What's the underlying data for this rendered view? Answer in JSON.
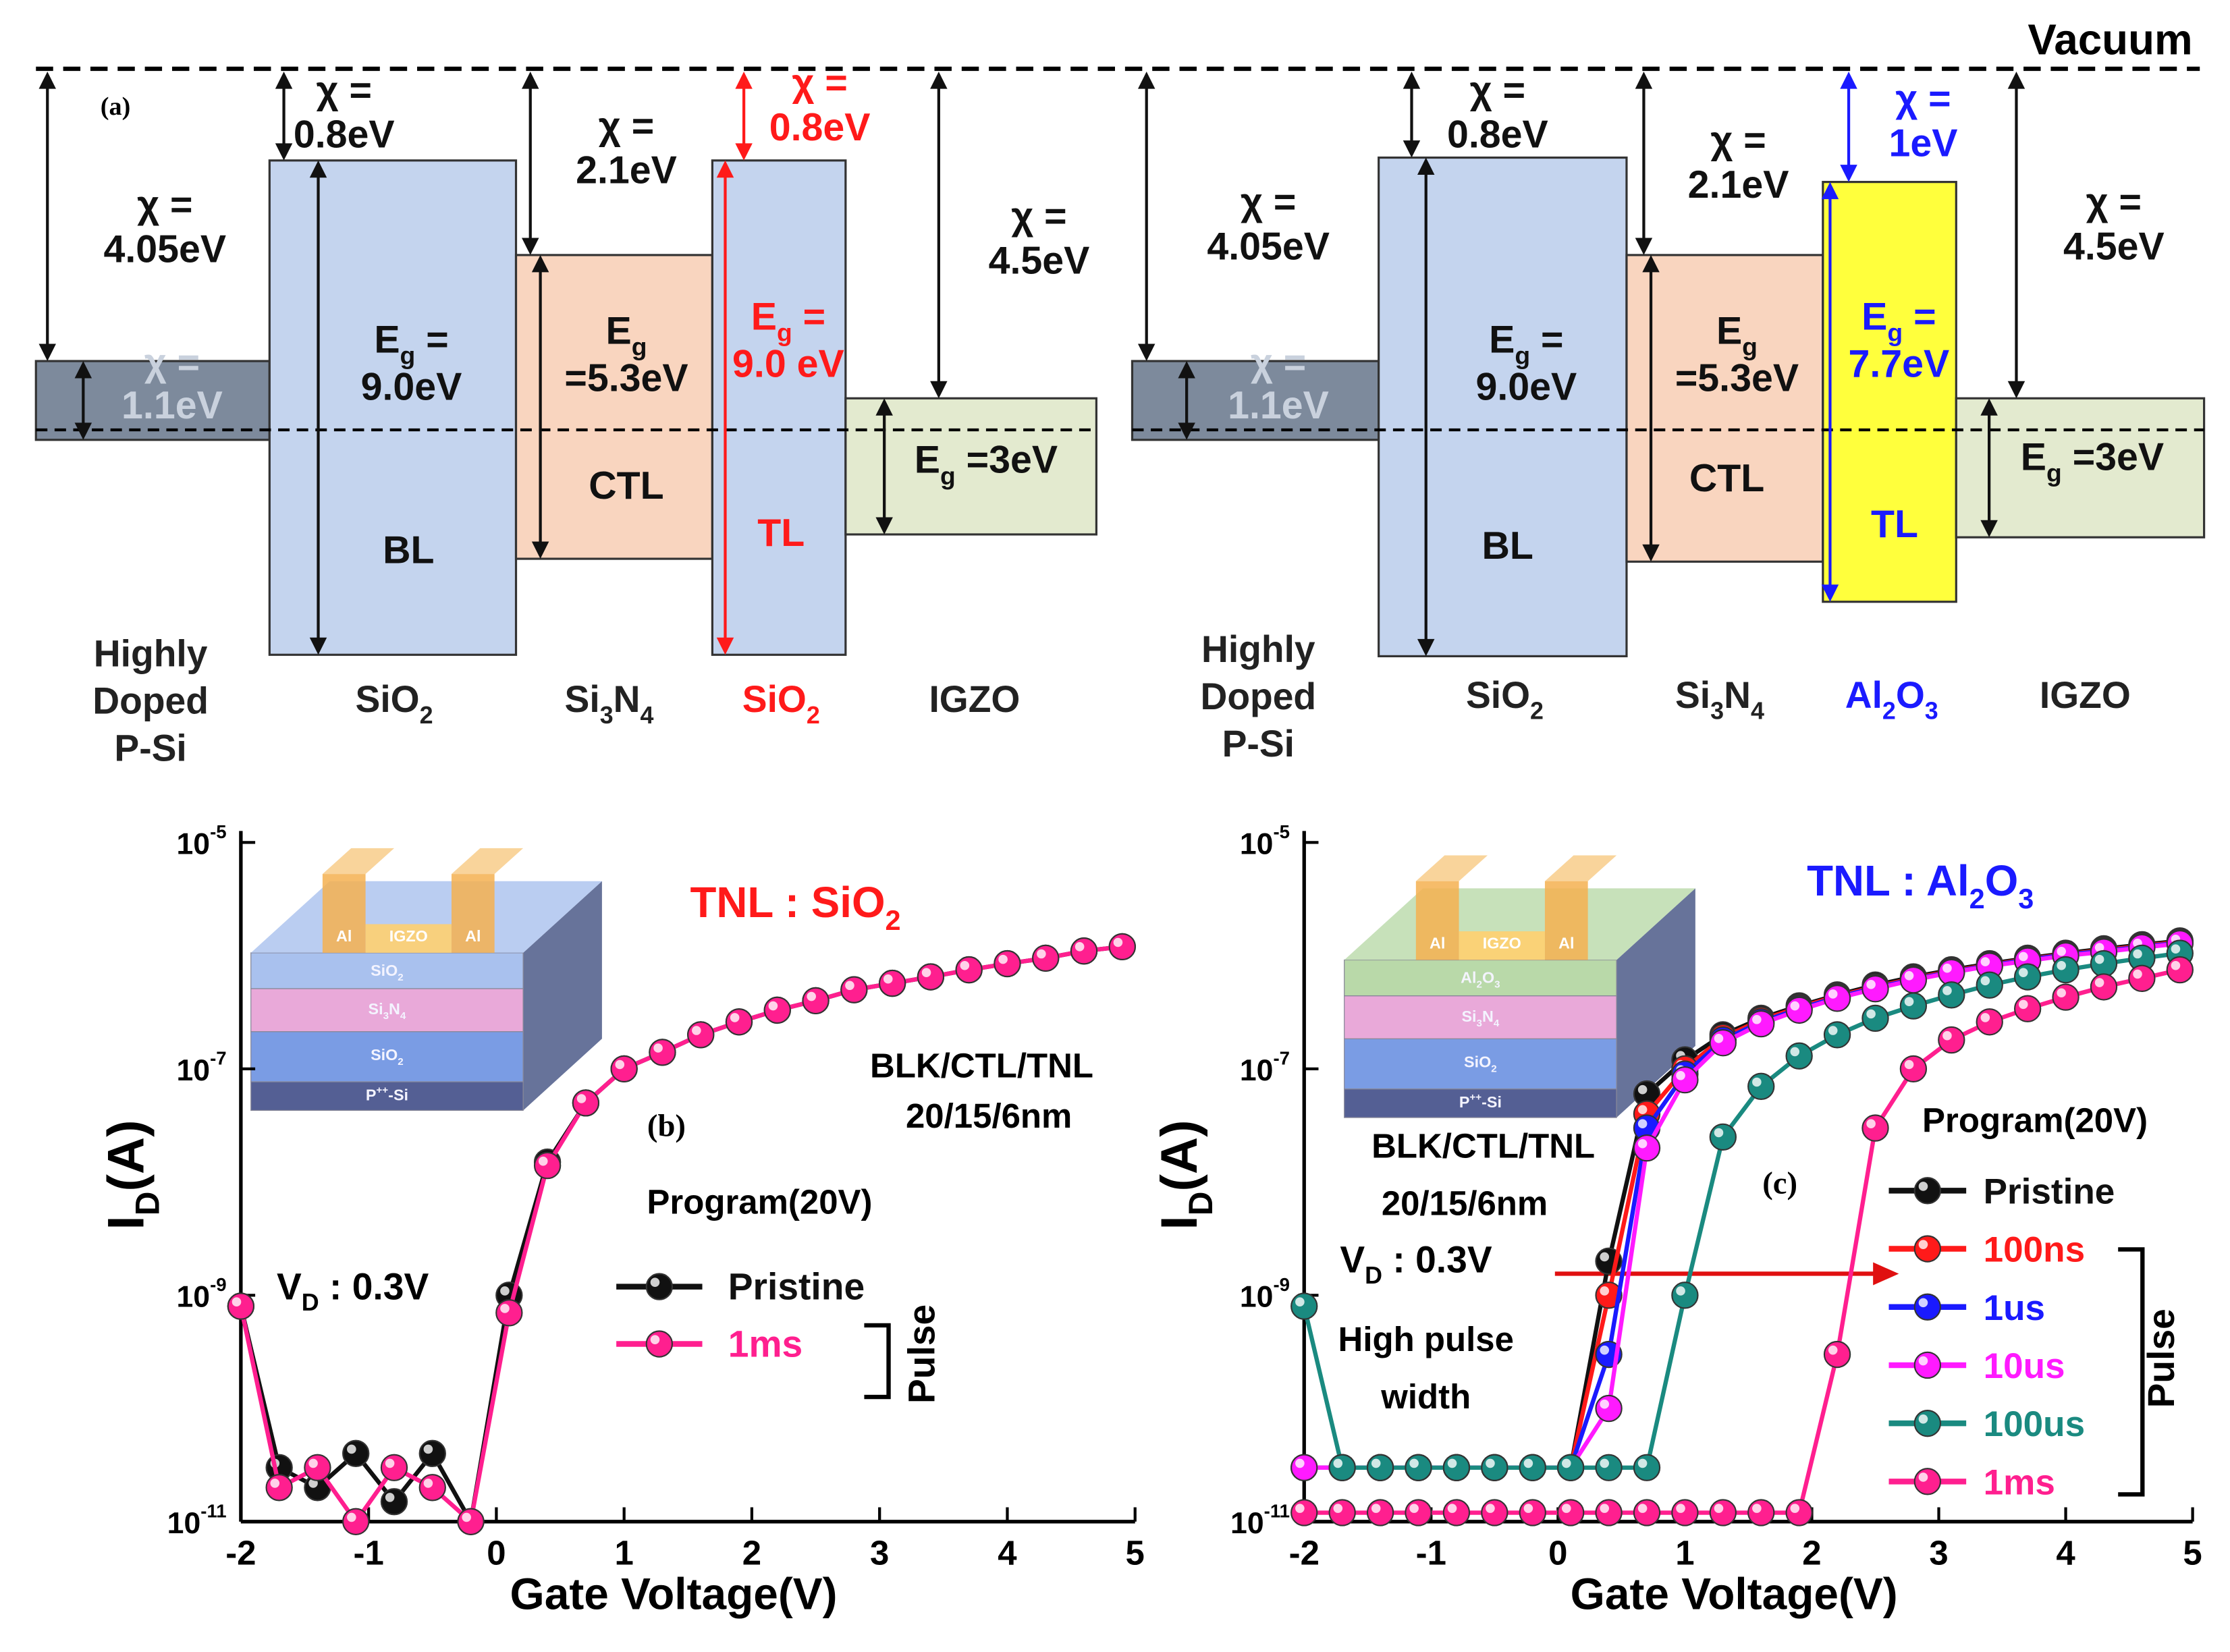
{
  "band_diagram": {
    "vacuum": "Vacuum",
    "label": "(a)",
    "panels": [
      {
        "layers": [
          {
            "color": "#7d8a9c",
            "chi": [
              [
                "χ ="
              ],
              [
                "4.05eV"
              ]
            ],
            "inner": [
              [
                "χ ="
              ],
              [
                "1.1eV"
              ]
            ],
            "name": [
              [
                "Highly"
              ],
              [
                "Doped"
              ],
              [
                "P-Si"
              ]
            ]
          },
          {
            "color": "#c4d4ee",
            "chi": [
              [
                "χ ="
              ],
              [
                "0.8eV"
              ]
            ],
            "eg": [
              [
                "E",
                {
                  "sub": "g"
                },
                " ="
              ],
              [
                "9.0eV"
              ]
            ],
            "region": "BL",
            "name": [
              [
                "SiO",
                {
                  "sub": "2"
                }
              ]
            ]
          },
          {
            "color": "#f9d5bf",
            "chi": [
              [
                "χ ="
              ],
              [
                "2.1eV"
              ]
            ],
            "eg": [
              [
                "E",
                {
                  "sub": "g"
                }
              ],
              [
                "=5.3eV"
              ]
            ],
            "region": "CTL",
            "name": [
              [
                "Si",
                {
                  "sub": "3"
                },
                "N",
                {
                  "sub": "4"
                }
              ]
            ]
          },
          {
            "color": "#c4d4ee",
            "text_color": "#ff1a1a",
            "chi": [
              [
                "χ ="
              ],
              [
                "0.8eV"
              ]
            ],
            "eg": [
              [
                "E",
                {
                  "sub": "g"
                },
                " ="
              ],
              [
                "9.0 eV"
              ]
            ],
            "region": "TL",
            "name": [
              [
                "SiO",
                {
                  "sub": "2"
                }
              ]
            ]
          },
          {
            "color": "#e3eacf",
            "chi": [
              [
                "χ ="
              ],
              [
                "4.5eV"
              ]
            ],
            "eg": [
              [
                "E",
                {
                  "sub": "g"
                },
                " =3eV"
              ]
            ],
            "name": [
              [
                "IGZO"
              ]
            ]
          }
        ]
      },
      {
        "layers": [
          {
            "color": "#7d8a9c",
            "chi": [
              [
                "χ ="
              ],
              [
                "4.05eV"
              ]
            ],
            "inner": [
              [
                "χ ="
              ],
              [
                "1.1eV"
              ]
            ],
            "name": [
              [
                "Highly"
              ],
              [
                "Doped"
              ],
              [
                "P-Si"
              ]
            ]
          },
          {
            "color": "#c4d4ee",
            "chi": [
              [
                "χ ="
              ],
              [
                "0.8eV"
              ]
            ],
            "eg": [
              [
                "E",
                {
                  "sub": "g"
                },
                " ="
              ],
              [
                "9.0eV"
              ]
            ],
            "region": "BL",
            "name": [
              [
                "SiO",
                {
                  "sub": "2"
                }
              ]
            ]
          },
          {
            "color": "#f9d5bf",
            "chi": [
              [
                "χ ="
              ],
              [
                "2.1eV"
              ]
            ],
            "eg": [
              [
                "E",
                {
                  "sub": "g"
                }
              ],
              [
                "=5.3eV"
              ]
            ],
            "region": "CTL",
            "name": [
              [
                "Si",
                {
                  "sub": "3"
                },
                "N",
                {
                  "sub": "4"
                }
              ]
            ]
          },
          {
            "color": "#ffff3c",
            "text_color": "#1a1aff",
            "chi": [
              [
                "χ ="
              ],
              [
                "1eV"
              ]
            ],
            "eg": [
              [
                "E",
                {
                  "sub": "g"
                },
                " ="
              ],
              [
                "7.7eV"
              ]
            ],
            "region": "TL",
            "name": [
              [
                "Al",
                {
                  "sub": "2"
                },
                "O",
                {
                  "sub": "3"
                }
              ]
            ]
          },
          {
            "color": "#e3eacf",
            "chi": [
              [
                "χ ="
              ],
              [
                "4.5eV"
              ]
            ],
            "eg": [
              [
                "E",
                {
                  "sub": "g"
                },
                " =3eV"
              ]
            ],
            "name": [
              [
                "IGZO"
              ]
            ]
          }
        ]
      }
    ]
  },
  "chart_data": [
    {
      "type": "line",
      "log_y": true,
      "title": [
        "TNL : SiO",
        {
          "sub": "2"
        }
      ],
      "title_color": "#ff1a1a",
      "x_label": "Gate Voltage(V)",
      "y_label": [
        "I",
        {
          "sub": "D"
        },
        "(A)"
      ],
      "annotations": [
        [
          "BLK/CTL/TNL"
        ],
        [
          "20/15/6nm"
        ],
        [
          "(b)"
        ],
        [
          "Program(20V)"
        ],
        [
          "V",
          {
            "sub": "D"
          },
          " : 0.3V"
        ]
      ],
      "pulse_label": "Pulse",
      "inset": {
        "top_color": "#a9c1ee",
        "labels": [
          [
            "Al"
          ],
          [
            "IGZO"
          ],
          [
            "Al"
          ],
          [
            "SiO",
            {
              "sub": "2"
            }
          ],
          [
            "Si",
            {
              "sub": "3"
            },
            "N",
            {
              "sub": "4"
            }
          ],
          [
            "SiO",
            {
              "sub": "2"
            }
          ],
          [
            "P",
            {
              "sup": "++"
            },
            "-Si"
          ]
        ]
      },
      "xlim": [
        -2,
        5
      ],
      "xticks": [
        -2,
        -1,
        0,
        1,
        2,
        3,
        4,
        5
      ],
      "ylim": [
        1e-11,
        1e-05
      ],
      "yticks": [
        {
          "value": 1e-11,
          "label": "10-11"
        },
        {
          "value": 1e-09,
          "label": "10-9"
        },
        {
          "value": 1e-07,
          "label": "10-7"
        },
        {
          "value": 1e-05,
          "label": "10-5"
        }
      ],
      "x": [
        -2,
        -1.7,
        -1.4,
        -1.1,
        -0.8,
        -0.5,
        -0.2,
        0.1,
        0.4,
        0.7,
        1.0,
        1.3,
        1.6,
        1.9,
        2.2,
        2.5,
        2.8,
        3.1,
        3.4,
        3.7,
        4.0,
        4.3,
        4.6,
        4.9
      ],
      "series": [
        {
          "name": "Pristine",
          "color": "#111111",
          "values": [
            8e-10,
            3e-11,
            2e-11,
            4e-11,
            1.5e-11,
            4e-11,
            1e-11,
            1e-09,
            1.5e-08,
            5e-08,
            1e-07,
            1.4e-07,
            2e-07,
            2.6e-07,
            3.3e-07,
            4e-07,
            5e-07,
            5.7e-07,
            6.5e-07,
            7.5e-07,
            8.5e-07,
            9.5e-07,
            1.1e-06,
            1.2e-06
          ]
        },
        {
          "name": "1ms",
          "color": "#ff1f8f",
          "values": [
            8e-10,
            2e-11,
            3e-11,
            1e-11,
            3e-11,
            2e-11,
            1e-11,
            7e-10,
            1.4e-08,
            5e-08,
            1e-07,
            1.4e-07,
            2e-07,
            2.6e-07,
            3.3e-07,
            4e-07,
            5e-07,
            5.7e-07,
            6.5e-07,
            7.5e-07,
            8.5e-07,
            9.5e-07,
            1.1e-06,
            1.2e-06
          ]
        }
      ]
    },
    {
      "type": "line",
      "log_y": true,
      "title": [
        "TNL : Al",
        {
          "sub": "2"
        },
        "O",
        {
          "sub": "3"
        }
      ],
      "title_color": "#1a1aff",
      "x_label": "Gate Voltage(V)",
      "y_label": [
        "I",
        {
          "sub": "D"
        },
        "(A)"
      ],
      "annotations": [
        [
          "BLK/CTL/TNL"
        ],
        [
          "20/15/6nm"
        ],
        [
          "V",
          {
            "sub": "D"
          },
          " : 0.3V"
        ],
        [
          "High pulse"
        ],
        [
          "width"
        ],
        [
          "(c)"
        ],
        [
          "Program(20V)"
        ]
      ],
      "pulse_label": "Pulse",
      "inset": {
        "top_color": "#b9d9a9",
        "labels": [
          [
            "Al"
          ],
          [
            "IGZO"
          ],
          [
            "Al"
          ],
          [
            "Al",
            {
              "sub": "2"
            },
            "O",
            {
              "sub": "3"
            }
          ],
          [
            "Si",
            {
              "sub": "3"
            },
            "N",
            {
              "sub": "4"
            }
          ],
          [
            "SiO",
            {
              "sub": "2"
            }
          ],
          [
            "P",
            {
              "sup": "++"
            },
            "-Si"
          ]
        ]
      },
      "xlim": [
        -2,
        5
      ],
      "xticks": [
        -2,
        -1,
        0,
        1,
        2,
        3,
        4,
        5
      ],
      "ylim": [
        1e-11,
        1e-05
      ],
      "yticks": [
        {
          "value": 1e-11,
          "label": "10-11"
        },
        {
          "value": 1e-09,
          "label": "10-9"
        },
        {
          "value": 1e-07,
          "label": "10-7"
        },
        {
          "value": 1e-05,
          "label": "10-5"
        }
      ],
      "x": [
        -2,
        -1.7,
        -1.4,
        -1.1,
        -0.8,
        -0.5,
        -0.2,
        0.1,
        0.4,
        0.7,
        1.0,
        1.3,
        1.6,
        1.9,
        2.2,
        2.5,
        2.8,
        3.1,
        3.4,
        3.7,
        4.0,
        4.3,
        4.6,
        4.9
      ],
      "series": [
        {
          "name": "Pristine",
          "color": "#111111",
          "values": [
            3e-11,
            3e-11,
            3e-11,
            3e-11,
            3e-11,
            3e-11,
            3e-11,
            3e-11,
            2e-09,
            6e-08,
            1.2e-07,
            2e-07,
            2.8e-07,
            3.6e-07,
            4.5e-07,
            5.5e-07,
            6.5e-07,
            7.5e-07,
            8.5e-07,
            9.5e-07,
            1.05e-06,
            1.15e-06,
            1.25e-06,
            1.35e-06
          ]
        },
        {
          "name": "100ns",
          "color": "#ff1a1a",
          "values": [
            3e-11,
            3e-11,
            3e-11,
            3e-11,
            3e-11,
            3e-11,
            3e-11,
            3e-11,
            1e-09,
            4e-08,
            1e-07,
            1.9e-07,
            2.7e-07,
            3.5e-07,
            4.4e-07,
            5.3e-07,
            6.3e-07,
            7.3e-07,
            8.3e-07,
            9.3e-07,
            1.03e-06,
            1.12e-06,
            1.22e-06,
            1.32e-06
          ]
        },
        {
          "name": "1us",
          "color": "#1a1aff",
          "values": [
            3e-11,
            3e-11,
            3e-11,
            3e-11,
            3e-11,
            3e-11,
            3e-11,
            3e-11,
            3e-10,
            3e-08,
            9e-08,
            1.8e-07,
            2.6e-07,
            3.4e-07,
            4.3e-07,
            5.2e-07,
            6.2e-07,
            7.2e-07,
            8.2e-07,
            9.2e-07,
            1.02e-06,
            1.1e-06,
            1.2e-06,
            1.3e-06
          ]
        },
        {
          "name": "10us",
          "color": "#ff1aff",
          "values": [
            3e-11,
            3e-11,
            3e-11,
            3e-11,
            3e-11,
            3e-11,
            3e-11,
            3e-11,
            1e-10,
            2e-08,
            8e-08,
            1.7e-07,
            2.5e-07,
            3.3e-07,
            4.2e-07,
            5.1e-07,
            6.1e-07,
            7.1e-07,
            8.1e-07,
            9e-07,
            1e-06,
            1.08e-06,
            1.18e-06,
            1.28e-06
          ]
        },
        {
          "name": "100us",
          "color": "#1a8a80",
          "values": [
            8e-10,
            3e-11,
            3e-11,
            3e-11,
            3e-11,
            3e-11,
            3e-11,
            3e-11,
            3e-11,
            3e-11,
            1e-09,
            2.5e-08,
            7e-08,
            1.3e-07,
            2e-07,
            2.8e-07,
            3.6e-07,
            4.5e-07,
            5.5e-07,
            6.5e-07,
            7.5e-07,
            8.5e-07,
            9.5e-07,
            1.05e-06
          ]
        },
        {
          "name": "1ms",
          "color": "#ff1f8f",
          "values": [
            1.2e-11,
            1.2e-11,
            1.2e-11,
            1.2e-11,
            1.2e-11,
            1.2e-11,
            1.2e-11,
            1.2e-11,
            1.2e-11,
            1.2e-11,
            1.2e-11,
            1.2e-11,
            1.2e-11,
            1.2e-11,
            3e-10,
            3e-08,
            1e-07,
            1.8e-07,
            2.6e-07,
            3.4e-07,
            4.3e-07,
            5.3e-07,
            6.3e-07,
            7.5e-07
          ]
        }
      ]
    }
  ]
}
